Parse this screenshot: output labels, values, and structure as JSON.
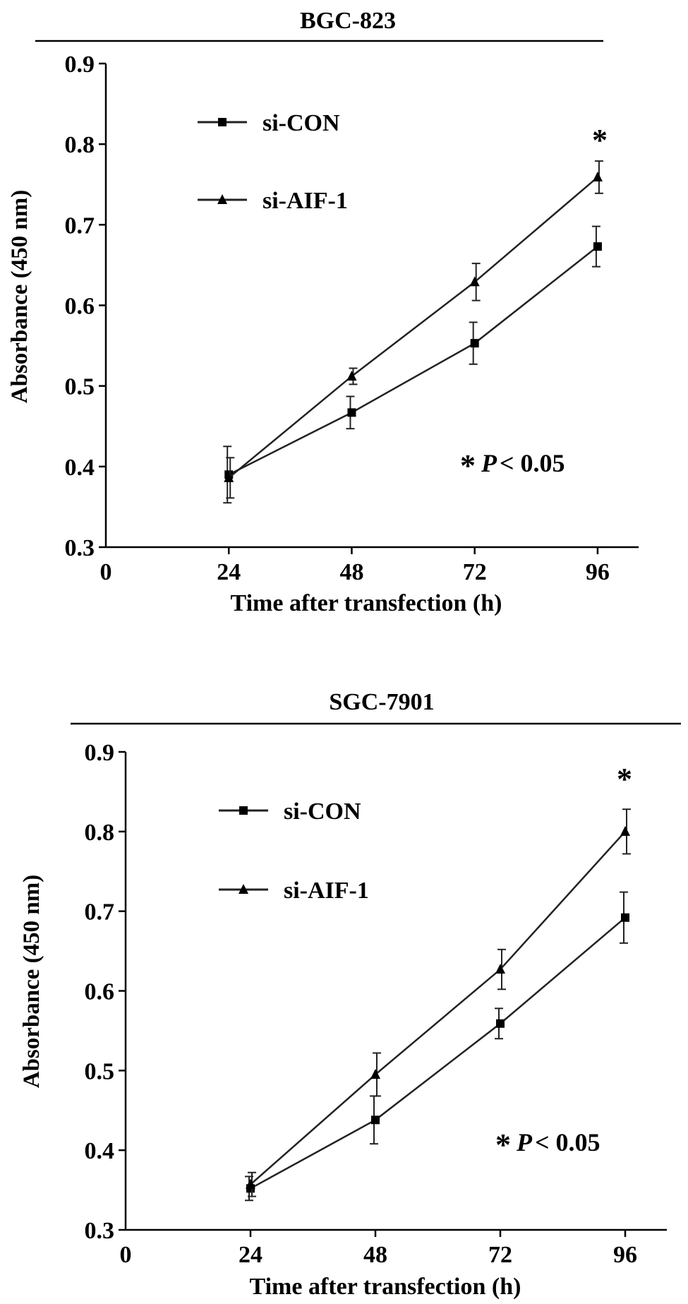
{
  "chart_data": [
    {
      "type": "line",
      "title": "BGC-823",
      "xlabel": "Time after transfection (h)",
      "ylabel": "Absorbance (450 nm)",
      "x_ticks": [
        "0",
        "24",
        "48",
        "72",
        "96"
      ],
      "y_ticks": [
        "0.3",
        "0.4",
        "0.5",
        "0.6",
        "0.7",
        "0.8",
        "0.9"
      ],
      "xlim": [
        0,
        104
      ],
      "ylim": [
        0.3,
        0.9
      ],
      "x": [
        24,
        48,
        72,
        96
      ],
      "legend_position": "top-left",
      "series": [
        {
          "name": "si-CON",
          "marker": "square",
          "values": [
            0.39,
            0.467,
            0.553,
            0.673
          ],
          "errors": [
            0.035,
            0.02,
            0.026,
            0.025
          ]
        },
        {
          "name": "si-AIF-1",
          "marker": "triangle",
          "values": [
            0.386,
            0.512,
            0.629,
            0.759
          ],
          "errors": [
            0.025,
            0.01,
            0.023,
            0.02
          ]
        }
      ],
      "significance_marker": "*",
      "significance_label": {
        "star": "*",
        "p_symbol": "P",
        "p_value": "< 0.05"
      },
      "grid": false
    },
    {
      "type": "line",
      "title": "SGC-7901",
      "xlabel": "Time after transfection (h)",
      "ylabel": "Absorbance (450 nm)",
      "x_ticks": [
        "0",
        "24",
        "48",
        "72",
        "96"
      ],
      "y_ticks": [
        "0.3",
        "0.4",
        "0.5",
        "0.6",
        "0.7",
        "0.8",
        "0.9"
      ],
      "xlim": [
        0,
        104
      ],
      "ylim": [
        0.3,
        0.9
      ],
      "x": [
        24,
        48,
        72,
        96
      ],
      "legend_position": "top-left",
      "series": [
        {
          "name": "si-CON",
          "marker": "square",
          "values": [
            0.352,
            0.438,
            0.559,
            0.692
          ],
          "errors": [
            0.015,
            0.03,
            0.019,
            0.032
          ]
        },
        {
          "name": "si-AIF-1",
          "marker": "triangle",
          "values": [
            0.357,
            0.495,
            0.627,
            0.8
          ],
          "errors": [
            0.015,
            0.027,
            0.025,
            0.028
          ]
        }
      ],
      "significance_marker": "*",
      "significance_label": {
        "star": "*",
        "p_symbol": "P",
        "p_value": "< 0.05"
      },
      "grid": false
    }
  ]
}
